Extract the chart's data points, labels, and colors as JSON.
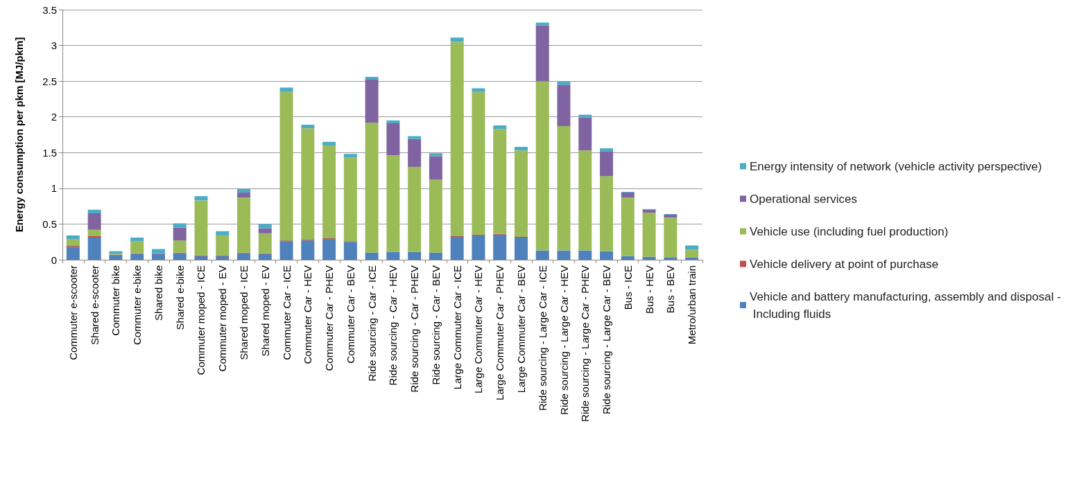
{
  "chart_data": {
    "type": "bar",
    "stacked": true,
    "ylabel": "Energy consumption per pkm [MJ/pkm]",
    "categories": [
      "Commuter e-scooter",
      "Shared e-scooter",
      "Commuter bike",
      "Commuter e-bike",
      "Shared bike",
      "Shared e-bike",
      "Commuter moped - ICE",
      "Commuter moped - EV",
      "Shared moped - ICE",
      "Shared moped - EV",
      "Commuter Car - ICE",
      "Commuter Car - HEV",
      "Commuter Car - PHEV",
      "Commuter Car - BEV",
      "Ride sourcing - Car - ICE",
      "Ride sourcing - Car - HEV",
      "Ride sourcing - Car - PHEV",
      "Ride sourcing - Car - BEV",
      "Large Commuter Car - ICE",
      "Large Commuter Car - HEV",
      "Large Commuter Car - PHEV",
      "Large Commuter Car - BEV",
      "Ride sourcing - Large Car - ICE",
      "Ride sourcing - Large Car - HEV",
      "Ride sourcing - Large Car - PHEV",
      "Ride sourcing - Large Car - BEV",
      "Bus - ICE",
      "Bus - HEV",
      "Bus - BEV",
      "Metro/urban train"
    ],
    "series": [
      {
        "name": "Vehicle and battery manufacturing, assembly and disposal - Including fluids",
        "color": "#4f81bd",
        "values": [
          0.18,
          0.31,
          0.06,
          0.08,
          0.08,
          0.09,
          0.05,
          0.05,
          0.09,
          0.08,
          0.26,
          0.27,
          0.29,
          0.25,
          0.1,
          0.11,
          0.11,
          0.1,
          0.32,
          0.34,
          0.35,
          0.31,
          0.13,
          0.13,
          0.13,
          0.12,
          0.05,
          0.04,
          0.03,
          0.03
        ]
      },
      {
        "name": "Vehicle delivery at point of purchase",
        "color": "#c0504d",
        "values": [
          0.02,
          0.02,
          0.01,
          0.01,
          0.01,
          0.01,
          0.01,
          0.01,
          0.01,
          0.01,
          0.01,
          0.01,
          0.01,
          0.01,
          0,
          0,
          0,
          0,
          0.01,
          0.01,
          0.01,
          0.01,
          0,
          0,
          0,
          0,
          0,
          0,
          0,
          0
        ]
      },
      {
        "name": "Vehicle use (including fuel production)",
        "color": "#9bbb59",
        "values": [
          0.09,
          0.09,
          0.01,
          0.17,
          0,
          0.17,
          0.77,
          0.28,
          0.77,
          0.28,
          2.08,
          1.56,
          1.3,
          1.17,
          1.82,
          1.35,
          1.19,
          1.02,
          2.72,
          2.0,
          1.47,
          1.21,
          2.37,
          1.74,
          1.4,
          1.05,
          0.82,
          0.62,
          0.56,
          0.11
        ]
      },
      {
        "name": "Operational services",
        "color": "#8064a2",
        "values": [
          0,
          0.23,
          0,
          0,
          0,
          0.18,
          0,
          0,
          0.07,
          0.07,
          0,
          0,
          0,
          0,
          0.6,
          0.45,
          0.39,
          0.33,
          0,
          0,
          0,
          0,
          0.78,
          0.58,
          0.46,
          0.35,
          0.07,
          0.04,
          0.04,
          0
        ]
      },
      {
        "name": "Energy intensity of network (vehicle activity perspective)",
        "color": "#4bacc6",
        "values": [
          0.05,
          0.05,
          0.04,
          0.05,
          0.06,
          0.06,
          0.06,
          0.06,
          0.05,
          0.06,
          0.06,
          0.05,
          0.05,
          0.05,
          0.04,
          0.04,
          0.04,
          0.04,
          0.06,
          0.05,
          0.05,
          0.05,
          0.04,
          0.05,
          0.04,
          0.04,
          0.01,
          0.01,
          0.01,
          0.06
        ]
      }
    ],
    "ylim": [
      0,
      3.5
    ],
    "yticks": [
      0,
      0.5,
      1,
      1.5,
      2,
      2.5,
      3,
      3.5
    ],
    "grid": "y",
    "legend": "right"
  }
}
